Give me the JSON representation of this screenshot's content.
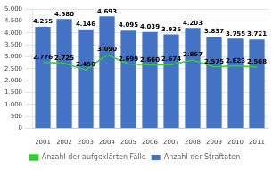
{
  "chart_data": {
    "type": "bar",
    "categories": [
      "2001",
      "2002",
      "2003",
      "2004",
      "2005",
      "2006",
      "2007",
      "2008",
      "2009",
      "2010",
      "2011"
    ],
    "series": [
      {
        "name": "Anzahl der Straftaten",
        "type": "bar",
        "color": "#4472C4",
        "values": [
          4255,
          4580,
          4146,
          4693,
          4095,
          4039,
          3935,
          4203,
          3837,
          3755,
          3721
        ],
        "value_labels": [
          "4.255",
          "4.580",
          "4.146",
          "4.693",
          "4.095",
          "4.039",
          "3.935",
          "4.203",
          "3.837",
          "3.755",
          "3.721"
        ]
      },
      {
        "name": "Anzahl der aufgeklärten Fälle",
        "type": "line",
        "color": "#33CC33",
        "values": [
          2776,
          2725,
          2450,
          3090,
          2699,
          2660,
          2674,
          2867,
          2575,
          2623,
          2568
        ],
        "value_labels": [
          "2.776",
          "2.725",
          "2.450",
          "3.090",
          "2.699",
          "2.660",
          "2.674",
          "2.867",
          "2.575",
          "2.623",
          "2.568"
        ]
      }
    ],
    "ylim": [
      0,
      5000
    ],
    "yticks": [
      0,
      500,
      {
        "value": 1000,
        "label": "1.000"
      },
      {
        "value": 1500,
        "label": "1.500"
      },
      {
        "value": 2000,
        "label": "2.000"
      },
      {
        "value": 2500,
        "label": "2.500"
      },
      {
        "value": 3000,
        "label": "3.000"
      },
      {
        "value": 3500,
        "label": "3.500"
      },
      {
        "value": 4000,
        "label": "4.000"
      },
      {
        "value": 4500,
        "label": "4.500"
      },
      {
        "value": 5000,
        "label": "5.000"
      }
    ],
    "grid": true,
    "legend": "bottom",
    "data_labels": true
  }
}
